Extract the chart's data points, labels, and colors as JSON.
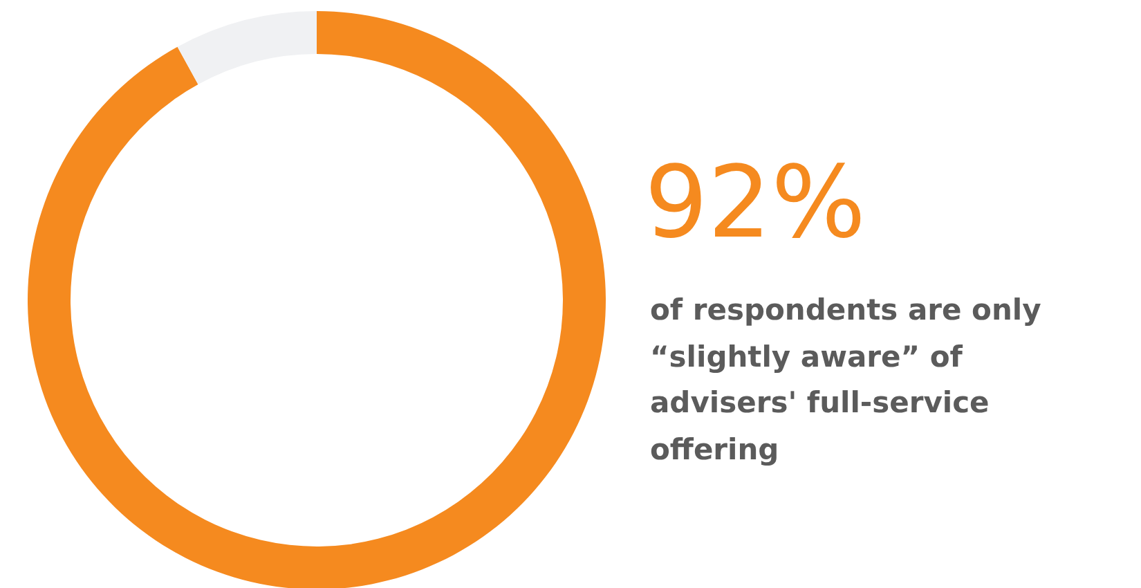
{
  "chart_data": {
    "type": "donut",
    "categories": [
      null,
      null
    ],
    "values": [
      92,
      8
    ],
    "colors": [
      "#f58a1f",
      "#f0f1f3"
    ],
    "value_labels": [
      "92%",
      null
    ],
    "annotations": [
      "of respondents are only “slightly aware” of advisers' full-service offering"
    ]
  }
}
